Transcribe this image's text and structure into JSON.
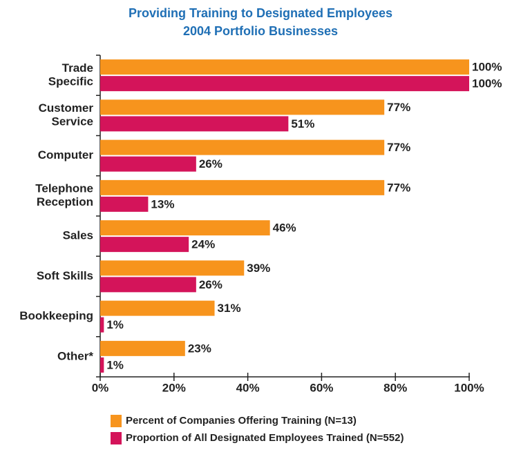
{
  "chart_data": {
    "type": "hbar",
    "title": [
      "Providing Training to Designated Employees",
      "2004 Portfolio Businesses"
    ],
    "categories": [
      "Trade\nSpecific",
      "Customer\nService",
      "Computer",
      "Telephone\nReception",
      "Sales",
      "Soft Skills",
      "Bookkeeping",
      "Other*"
    ],
    "series": [
      {
        "name": "Percent of Companies Offering Training (N=13)",
        "color": "#f7941d",
        "values": [
          100,
          77,
          77,
          77,
          46,
          39,
          31,
          23
        ],
        "value_labels": [
          "100%",
          "77%",
          "77%",
          "77%",
          "46%",
          "39%",
          "31%",
          "23%"
        ]
      },
      {
        "name": "Proportion of All Designated Employees Trained (N=552)",
        "color": "#d4145a",
        "values": [
          100,
          51,
          26,
          13,
          24,
          26,
          1,
          1
        ],
        "value_labels": [
          "100%",
          "51%",
          "26%",
          "13%",
          "24%",
          "26%",
          "1%",
          "1%"
        ]
      }
    ],
    "xlim": [
      0,
      100
    ],
    "xticks": [
      {
        "value": 0,
        "label": "0%"
      },
      {
        "value": 20,
        "label": "20%"
      },
      {
        "value": 40,
        "label": "40%"
      },
      {
        "value": 60,
        "label": "60%"
      },
      {
        "value": 80,
        "label": "80%"
      },
      {
        "value": 100,
        "label": "100%"
      }
    ]
  }
}
